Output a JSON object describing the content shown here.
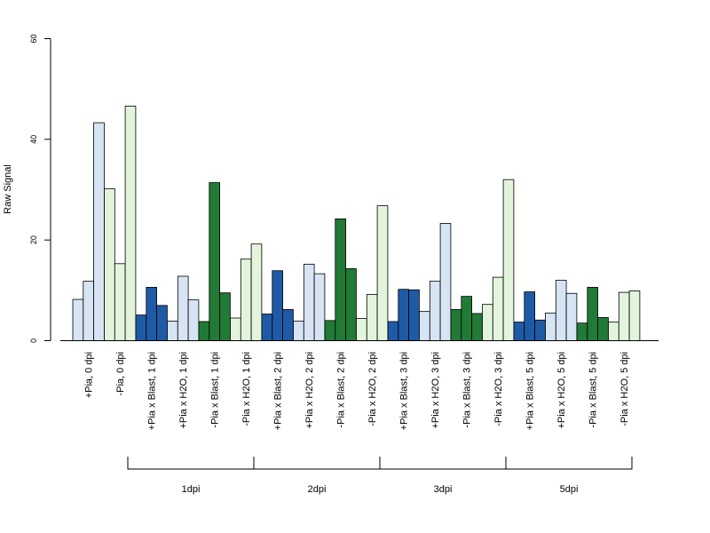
{
  "chart_data": {
    "type": "bar",
    "ylabel": "Raw Signal",
    "ylim": [
      0,
      60
    ],
    "yticks": [
      0,
      20,
      40,
      60
    ],
    "grid": false,
    "colors": {
      "light_blue": "#d6e4f4",
      "dark_blue": "#1f5aa6",
      "light_green": "#e2f5dc",
      "dark_green": "#217a35"
    },
    "groups": [
      {
        "label": "+Pia, 0 dpi",
        "color": "light_blue",
        "values": [
          8.2,
          11.8,
          43.3
        ]
      },
      {
        "label": "-Pia, 0 dpi",
        "color": "light_green",
        "values": [
          30.2,
          15.3,
          46.6
        ]
      },
      {
        "label": "+Pia x Blast, 1 dpi",
        "color": "dark_blue",
        "values": [
          5.1,
          10.6,
          7.0
        ]
      },
      {
        "label": "+Pia x H2O, 1 dpi",
        "color": "light_blue",
        "values": [
          3.9,
          12.8,
          8.1
        ]
      },
      {
        "label": "-Pia x Blast, 1 dpi",
        "color": "dark_green",
        "values": [
          3.8,
          31.4,
          9.5
        ]
      },
      {
        "label": "-Pia x H2O, 1 dpi",
        "color": "light_green",
        "values": [
          4.5,
          16.2,
          19.2
        ]
      },
      {
        "label": "+Pia x Blast, 2 dpi",
        "color": "dark_blue",
        "values": [
          5.3,
          13.9,
          6.2
        ]
      },
      {
        "label": "+Pia x H2O, 2 dpi",
        "color": "light_blue",
        "values": [
          3.9,
          15.2,
          13.3
        ]
      },
      {
        "label": "-Pia x Blast, 2 dpi",
        "color": "dark_green",
        "values": [
          4.0,
          24.2,
          14.3
        ]
      },
      {
        "label": "-Pia x H2O, 2 dpi",
        "color": "light_green",
        "values": [
          4.4,
          9.2,
          26.8
        ]
      },
      {
        "label": "+Pia x Blast, 3 dpi",
        "color": "dark_blue",
        "values": [
          3.8,
          10.2,
          10.1
        ]
      },
      {
        "label": "+Pia x H2O, 3 dpi",
        "color": "light_blue",
        "values": [
          5.8,
          11.8,
          23.3
        ]
      },
      {
        "label": "-Pia x Blast, 3 dpi",
        "color": "dark_green",
        "values": [
          6.2,
          8.8,
          5.4
        ]
      },
      {
        "label": "-Pia x H2O, 3 dpi",
        "color": "light_green",
        "values": [
          7.2,
          12.6,
          32.0
        ]
      },
      {
        "label": "+Pia x Blast, 5 dpi",
        "color": "dark_blue",
        "values": [
          3.7,
          9.7,
          4.1
        ]
      },
      {
        "label": "+Pia x H2O, 5 dpi",
        "color": "light_blue",
        "values": [
          5.5,
          12.0,
          9.4
        ]
      },
      {
        "label": "-Pia x Blast, 5 dpi",
        "color": "dark_green",
        "values": [
          3.5,
          10.6,
          4.6
        ]
      },
      {
        "label": "-Pia x H2O, 5 dpi",
        "color": "light_green",
        "values": [
          3.7,
          9.6,
          9.9
        ]
      }
    ],
    "brackets": [
      {
        "label": "1dpi",
        "from_group": 2,
        "to_group": 5
      },
      {
        "label": "2dpi",
        "from_group": 6,
        "to_group": 9
      },
      {
        "label": "3dpi",
        "from_group": 10,
        "to_group": 13
      },
      {
        "label": "5dpi",
        "from_group": 14,
        "to_group": 17
      }
    ]
  }
}
